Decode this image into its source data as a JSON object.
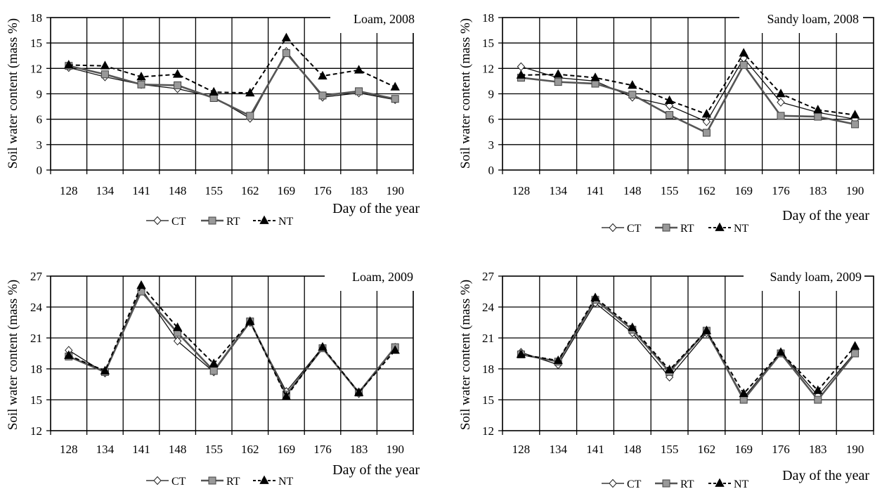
{
  "figure": {
    "x_label": "Day of the year",
    "y_label": "Soil water content (mass %)"
  },
  "legend_entries": [
    "CT",
    "RT",
    "NT"
  ],
  "chart_data": [
    {
      "type": "line",
      "title": "Loam, 2008",
      "xlabel": "Day of the year",
      "ylabel": "Soil water content (mass %)",
      "categories": [
        "128",
        "134",
        "141",
        "148",
        "155",
        "162",
        "169",
        "176",
        "183",
        "190"
      ],
      "ylim": [
        0,
        18
      ],
      "yticks": [
        0,
        3,
        6,
        9,
        12,
        15,
        18
      ],
      "grid": true,
      "series": [
        {
          "name": "CT",
          "values": [
            12.1,
            11.0,
            10.1,
            9.6,
            8.6,
            6.1,
            14.0,
            8.6,
            9.1,
            8.3
          ]
        },
        {
          "name": "RT",
          "values": [
            12.3,
            11.3,
            10.1,
            10.0,
            8.5,
            6.4,
            13.8,
            8.8,
            9.3,
            8.4
          ]
        },
        {
          "name": "NT",
          "values": [
            12.4,
            12.3,
            11.0,
            11.3,
            9.2,
            9.1,
            15.6,
            11.1,
            11.8,
            9.8
          ]
        }
      ]
    },
    {
      "type": "line",
      "title": "Sandy loam, 2008",
      "xlabel": "Day of the year",
      "ylabel": "Soil water content (mass %)",
      "categories": [
        "128",
        "134",
        "141",
        "148",
        "155",
        "162",
        "169",
        "176",
        "183",
        "190"
      ],
      "ylim": [
        0,
        18
      ],
      "yticks": [
        0,
        3,
        6,
        9,
        12,
        15,
        18
      ],
      "grid": true,
      "series": [
        {
          "name": "CT",
          "values": [
            12.2,
            10.9,
            10.5,
            8.6,
            7.6,
            5.7,
            13.2,
            8.0,
            6.8,
            6.0
          ]
        },
        {
          "name": "RT",
          "values": [
            10.9,
            10.4,
            10.2,
            8.9,
            6.5,
            4.4,
            12.4,
            6.4,
            6.3,
            5.4
          ]
        },
        {
          "name": "NT",
          "values": [
            11.2,
            11.3,
            10.9,
            10.0,
            8.2,
            6.6,
            13.8,
            9.0,
            7.1,
            6.5
          ]
        }
      ]
    },
    {
      "type": "line",
      "title": "Loam, 2009",
      "xlabel": "Day of the year",
      "ylabel": "Soil water content (mass %)",
      "categories": [
        "128",
        "134",
        "141",
        "148",
        "155",
        "162",
        "169",
        "176",
        "183",
        "190"
      ],
      "ylim": [
        12,
        27
      ],
      "yticks": [
        12,
        15,
        18,
        21,
        24,
        27
      ],
      "grid": true,
      "series": [
        {
          "name": "CT",
          "values": [
            19.8,
            17.6,
            25.8,
            20.7,
            17.7,
            22.5,
            15.8,
            20.1,
            15.6,
            20.1
          ]
        },
        {
          "name": "RT",
          "values": [
            19.2,
            17.7,
            25.5,
            21.5,
            17.8,
            22.6,
            15.5,
            20.0,
            15.7,
            20.1
          ]
        },
        {
          "name": "NT",
          "values": [
            19.3,
            17.8,
            26.1,
            22.0,
            18.5,
            22.6,
            15.3,
            20.1,
            15.7,
            19.8
          ]
        }
      ]
    },
    {
      "type": "line",
      "title": "Sandy loam, 2009",
      "xlabel": "Day of the year",
      "ylabel": "Soil water content (mass %)",
      "categories": [
        "128",
        "134",
        "141",
        "148",
        "155",
        "162",
        "169",
        "176",
        "183",
        "190"
      ],
      "ylim": [
        12,
        27
      ],
      "yticks": [
        12,
        15,
        18,
        21,
        24,
        27
      ],
      "grid": true,
      "series": [
        {
          "name": "CT",
          "values": [
            19.6,
            18.4,
            24.4,
            21.5,
            17.2,
            21.5,
            15.2,
            19.6,
            15.4,
            19.6
          ]
        },
        {
          "name": "RT",
          "values": [
            19.4,
            18.7,
            24.7,
            21.8,
            17.7,
            21.7,
            15.0,
            19.5,
            15.0,
            19.5
          ]
        },
        {
          "name": "NT",
          "values": [
            19.4,
            18.8,
            24.9,
            22.0,
            17.9,
            21.7,
            15.6,
            19.6,
            15.9,
            20.2
          ]
        }
      ]
    }
  ]
}
